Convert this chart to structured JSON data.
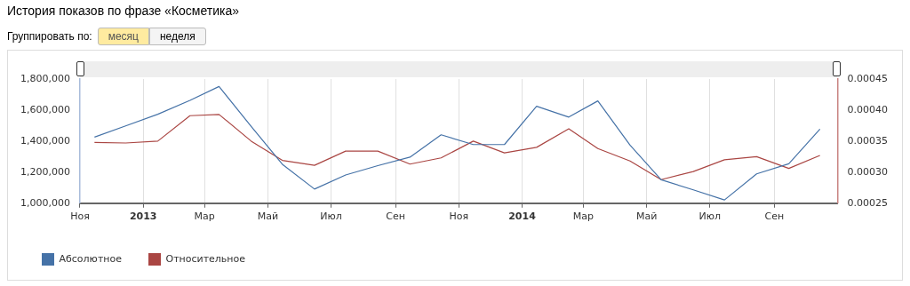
{
  "chart_data": {
    "type": "line",
    "title": "История показов по фразе «Косметика»",
    "annotations": [
      "Группировать по:",
      "месяц",
      "неделя"
    ],
    "x": [
      "2012-11-15",
      "2012-12-15",
      "2013-01-15",
      "2013-02-15",
      "2013-03-15",
      "2013-04-15",
      "2013-05-15",
      "2013-06-15",
      "2013-07-15",
      "2013-08-15",
      "2013-09-15",
      "2013-10-15",
      "2013-11-15",
      "2013-12-15",
      "2014-01-15",
      "2014-02-15",
      "2014-03-15",
      "2014-04-15",
      "2014-05-15",
      "2014-06-15",
      "2014-07-15",
      "2014-08-15",
      "2014-09-15",
      "2014-10-15"
    ],
    "series": [
      {
        "name": "Абсолютное",
        "color": "#4572a7",
        "values": [
          1426000,
          1498000,
          1573000,
          1663000,
          1752000,
          1494000,
          1251000,
          1091000,
          1182000,
          1242000,
          1297000,
          1441000,
          1378000,
          1378000,
          1625000,
          1555000,
          1659000,
          1374000,
          1151000,
          1086000,
          1021000,
          1189000,
          1254000,
          1477000
        ]
      },
      {
        "name": "Относительное",
        "color": "#aa4643",
        "axis": "y2",
        "values": [
          0.000348,
          0.000347,
          0.00035,
          0.000391,
          0.000393,
          0.00035,
          0.000319,
          0.000311,
          0.000334,
          0.000334,
          0.000313,
          0.000323,
          0.00035,
          0.000331,
          0.00034,
          0.00037,
          0.000338,
          0.000318,
          0.000288,
          0.000301,
          0.00032,
          0.000325,
          0.000306,
          0.000327
        ]
      }
    ],
    "xlim": [
      "2012-11-01",
      "2014-11-01"
    ],
    "xticks": [
      {
        "value": "2012-11-01",
        "label": "Ноя"
      },
      {
        "value": "2013-01-01",
        "label": "2013"
      },
      {
        "value": "2013-03-01",
        "label": "Мар"
      },
      {
        "value": "2013-05-01",
        "label": "Май"
      },
      {
        "value": "2013-07-01",
        "label": "Июл"
      },
      {
        "value": "2013-09-01",
        "label": "Сен"
      },
      {
        "value": "2013-11-01",
        "label": "Ноя"
      },
      {
        "value": "2014-01-01",
        "label": "2014"
      },
      {
        "value": "2014-03-01",
        "label": "Мар"
      },
      {
        "value": "2014-05-01",
        "label": "Май"
      },
      {
        "value": "2014-07-01",
        "label": "Июл"
      },
      {
        "value": "2014-09-01",
        "label": "Сен"
      }
    ],
    "ylim": [
      1000000,
      1800000
    ],
    "yticks": [
      {
        "value": 1000000,
        "label": "1,000,000"
      },
      {
        "value": 1200000,
        "label": "1,200,000"
      },
      {
        "value": 1400000,
        "label": "1,400,000"
      },
      {
        "value": 1600000,
        "label": "1,600,000"
      },
      {
        "value": 1800000,
        "label": "1,800,000"
      }
    ],
    "y2lim": [
      0.00025,
      0.00045
    ],
    "y2ticks": [
      {
        "value": 0.00025,
        "label": "0.00025"
      },
      {
        "value": 0.0003,
        "label": "0.00030"
      },
      {
        "value": 0.00035,
        "label": "0.00035"
      },
      {
        "value": 0.0004,
        "label": "0.00040"
      },
      {
        "value": 0.00045,
        "label": "0.00045"
      }
    ],
    "grid": "x",
    "legend": "bottom left",
    "marker": "none",
    "line_style": "solid"
  }
}
